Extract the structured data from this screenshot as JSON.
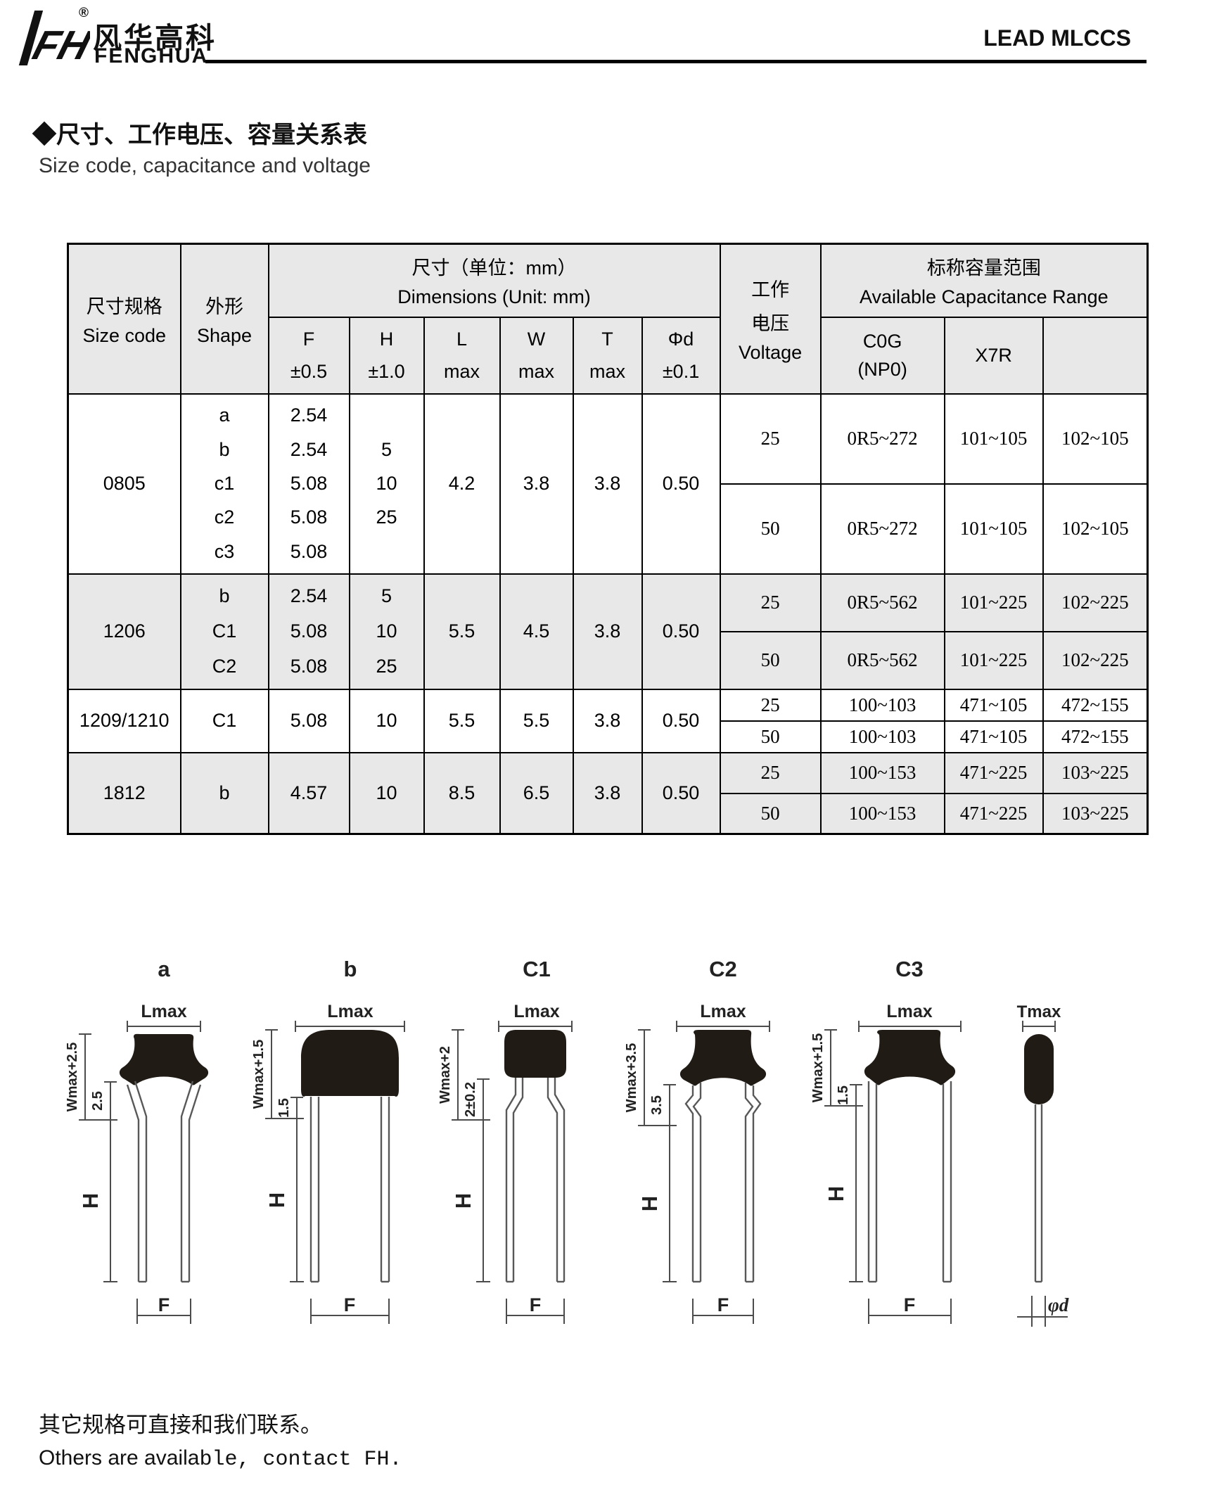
{
  "page": {
    "brand_cn": "风华高科",
    "brand_en": "FENGHUA",
    "registered_mark": "®",
    "logo_monogram": "FH",
    "doc_title": "LEAD MLCCS"
  },
  "section": {
    "title_cn": "◆尺寸、工作电压、容量关系表",
    "title_en": "Size code, capacitance and voltage"
  },
  "table": {
    "headers": {
      "size_code_cn": "尺寸规格",
      "size_code_en": "Size code",
      "shape_cn": "外形",
      "shape_en": "Shape",
      "dimensions_cn": "尺寸（单位：mm）",
      "dimensions_en": "Dimensions   (Unit: mm)",
      "dim_cols": [
        [
          "F",
          "±0.5"
        ],
        [
          "H",
          "±1.0"
        ],
        [
          "L",
          "max"
        ],
        [
          "W",
          "max"
        ],
        [
          "T",
          "max"
        ],
        [
          "Φd",
          "±0.1"
        ]
      ],
      "voltage_lines": [
        "工作",
        "电压",
        "Voltage"
      ],
      "cap_range_cn": "标称容量范围",
      "cap_range_en": "Available Capacitance Range",
      "cap_cols": [
        [
          "C0G",
          "(NP0)"
        ],
        [
          "X7R",
          ""
        ],
        [
          "",
          ""
        ]
      ]
    },
    "rows": [
      {
        "size_code": "0805",
        "shapes": [
          "a",
          "b",
          "c1",
          "c2",
          "c3"
        ],
        "f_values": [
          "2.54",
          "2.54",
          "5.08",
          "5.08",
          "5.08"
        ],
        "h_values": [
          "5",
          "10",
          "25"
        ],
        "l": "4.2",
        "w": "3.8",
        "t": "3.8",
        "phid": "0.50",
        "shaded": false,
        "voltage_rows": [
          {
            "voltage": "25",
            "c0g": "0R5~272",
            "x7r": "101~105",
            "other": "102~105"
          },
          {
            "voltage": "50",
            "c0g": "0R5~272",
            "x7r": "101~105",
            "other": "102~105"
          }
        ]
      },
      {
        "size_code": "1206",
        "shapes": [
          "b",
          "C1",
          "C2"
        ],
        "f_values": [
          "2.54",
          "5.08",
          "5.08"
        ],
        "h_values": [
          "5",
          "10",
          "25"
        ],
        "l": "5.5",
        "w": "4.5",
        "t": "3.8",
        "phid": "0.50",
        "shaded": true,
        "voltage_rows": [
          {
            "voltage": "25",
            "c0g": "0R5~562",
            "x7r": "101~225",
            "other": "102~225"
          },
          {
            "voltage": "50",
            "c0g": "0R5~562",
            "x7r": "101~225",
            "other": "102~225"
          }
        ]
      },
      {
        "size_code": "1209/1210",
        "shapes": [
          "C1"
        ],
        "f_values": [
          "5.08"
        ],
        "h_values": [
          "10"
        ],
        "l": "5.5",
        "w": "5.5",
        "t": "3.8",
        "phid": "0.50",
        "shaded": false,
        "voltage_rows": [
          {
            "voltage": "25",
            "c0g": "100~103",
            "x7r": "471~105",
            "other": "472~155"
          },
          {
            "voltage": "50",
            "c0g": "100~103",
            "x7r": "471~105",
            "other": "472~155"
          }
        ]
      },
      {
        "size_code": "1812",
        "shapes": [
          "b"
        ],
        "f_values": [
          "4.57"
        ],
        "h_values": [
          "10"
        ],
        "l": "8.5",
        "w": "6.5",
        "t": "3.8",
        "phid": "0.50",
        "shaded": true,
        "voltage_rows": [
          {
            "voltage": "25",
            "c0g": "100~153",
            "x7r": "471~225",
            "other": "103~225"
          },
          {
            "voltage": "50",
            "c0g": "100~153",
            "x7r": "471~225",
            "other": "103~225"
          }
        ]
      }
    ]
  },
  "diagrams": [
    {
      "name": "a",
      "lmax": "Lmax",
      "wmax": "Wmax+2.5",
      "inner": "2.5",
      "h": "H",
      "f": "F"
    },
    {
      "name": "b",
      "lmax": "Lmax",
      "wmax": "Wmax+1.5",
      "inner": "1.5",
      "h": "H",
      "f": "F"
    },
    {
      "name": "C1",
      "lmax": "Lmax",
      "wmax": "Wmax+2",
      "inner": "2±0.2",
      "h": "H",
      "f": "F"
    },
    {
      "name": "C2",
      "lmax": "Lmax",
      "wmax": "Wmax+3.5",
      "inner": "3.5",
      "h": "H",
      "f": "F"
    },
    {
      "name": "C3",
      "lmax": "Lmax",
      "wmax": "Wmax+1.5",
      "inner": "1.5",
      "h": "H",
      "f": "F"
    }
  ],
  "side_view": {
    "label": "Tmax",
    "phid": "φd"
  },
  "footer": {
    "note_cn": "其它规格可直接和我们联系。",
    "note_en_part1": "Others are availa",
    "note_en_part2": "ble, contact FH."
  }
}
